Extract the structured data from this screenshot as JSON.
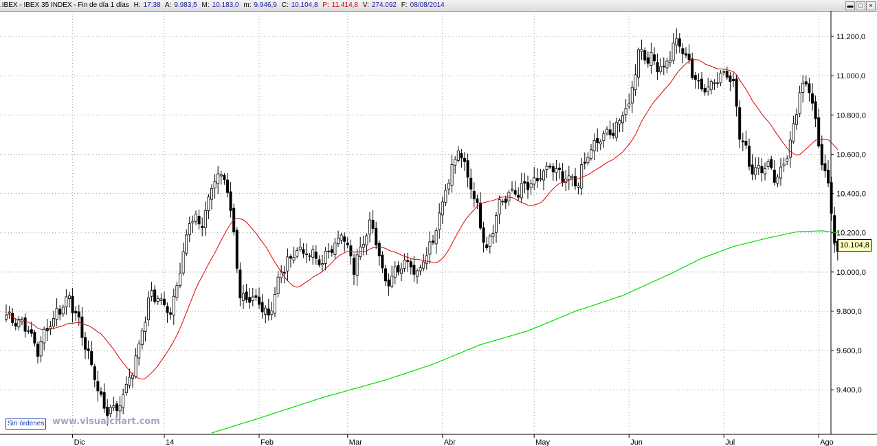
{
  "titlebar": {
    "symbol": ".IBEX - IBEX 35 INDEX - Fin de día 1 días",
    "h_label": "H:",
    "h_value": "17:38",
    "a_label": "A:",
    "a_value": "9.983,5",
    "m_label": "M:",
    "m_value": "10.183,0",
    "low_label": "m:",
    "low_value": "9.946,9",
    "c_label": "C:",
    "c_value": "10.104,8",
    "p_label": "P:",
    "p_value": "11.414,8",
    "v_label": "V:",
    "v_value": "274.092",
    "f_label": "F:",
    "f_value": "08/08/2014",
    "window_buttons": [
      "▬",
      "□",
      "×"
    ]
  },
  "badge": "Sin órdenes",
  "watermark": "www.visualchart.com",
  "last_price": "10.104,8",
  "colors": {
    "ma_short": "#e00000",
    "ma_long": "#00dd00",
    "grid": "#a0a0a0",
    "candle": "#000000"
  },
  "chart_data": {
    "type": "candlestick",
    "y_ticks": [
      "11.200,0",
      "11.000,0",
      "10.800,0",
      "10.600,0",
      "10.400,0",
      "10.200,0",
      "10.000,0",
      "9.800,0",
      "9.600,0",
      "9.400,0"
    ],
    "y_tick_values": [
      11200,
      11000,
      10800,
      10600,
      10400,
      10200,
      10000,
      9800,
      9600,
      9400
    ],
    "ylim": [
      9180,
      11330
    ],
    "x_labels": [
      "Dic",
      "14",
      "Feb",
      "Mar",
      "Abr",
      "May",
      "Jun",
      "Jul",
      "Ago"
    ],
    "x_label_bar": [
      21,
      50,
      80,
      108,
      138,
      167,
      197,
      227,
      257
    ],
    "num_bars": 264,
    "anchors": [
      [
        0,
        9780
      ],
      [
        6,
        9730
      ],
      [
        10,
        9600
      ],
      [
        13,
        9720
      ],
      [
        20,
        9880
      ],
      [
        25,
        9630
      ],
      [
        31,
        9300
      ],
      [
        35,
        9300
      ],
      [
        40,
        9500
      ],
      [
        46,
        9900
      ],
      [
        52,
        9790
      ],
      [
        58,
        10260
      ],
      [
        62,
        10250
      ],
      [
        66,
        10480
      ],
      [
        69,
        10500
      ],
      [
        72,
        10210
      ],
      [
        74,
        9850
      ],
      [
        80,
        9850
      ],
      [
        83,
        9780
      ],
      [
        87,
        10000
      ],
      [
        92,
        10120
      ],
      [
        100,
        10050
      ],
      [
        106,
        10200
      ],
      [
        110,
        10020
      ],
      [
        115,
        10270
      ],
      [
        120,
        9950
      ],
      [
        126,
        10060
      ],
      [
        130,
        10000
      ],
      [
        135,
        10170
      ],
      [
        139,
        10420
      ],
      [
        143,
        10620
      ],
      [
        147,
        10450
      ],
      [
        152,
        10120
      ],
      [
        156,
        10350
      ],
      [
        160,
        10400
      ],
      [
        164,
        10430
      ],
      [
        168,
        10460
      ],
      [
        172,
        10540
      ],
      [
        176,
        10470
      ],
      [
        181,
        10460
      ],
      [
        184,
        10600
      ],
      [
        188,
        10680
      ],
      [
        192,
        10720
      ],
      [
        197,
        10850
      ],
      [
        200,
        11130
      ],
      [
        204,
        11080
      ],
      [
        208,
        11040
      ],
      [
        212,
        11180
      ],
      [
        216,
        11060
      ],
      [
        220,
        10920
      ],
      [
        224,
        10980
      ],
      [
        228,
        11020
      ],
      [
        230,
        10970
      ],
      [
        232,
        10700
      ],
      [
        236,
        10520
      ],
      [
        240,
        10550
      ],
      [
        244,
        10480
      ],
      [
        248,
        10650
      ],
      [
        251,
        10920
      ],
      [
        254,
        10940
      ],
      [
        257,
        10650
      ],
      [
        260,
        10450
      ],
      [
        262,
        10160
      ],
      [
        263,
        10105
      ]
    ],
    "series": [
      {
        "name": "MA20",
        "color": "#e00000"
      },
      {
        "name": "MA200",
        "color": "#00dd00"
      }
    ],
    "ma200": [
      [
        65,
        9180
      ],
      [
        80,
        9255
      ],
      [
        100,
        9360
      ],
      [
        120,
        9450
      ],
      [
        135,
        9530
      ],
      [
        150,
        9630
      ],
      [
        165,
        9700
      ],
      [
        180,
        9800
      ],
      [
        195,
        9880
      ],
      [
        210,
        9990
      ],
      [
        220,
        10070
      ],
      [
        230,
        10130
      ],
      [
        240,
        10170
      ],
      [
        250,
        10205
      ],
      [
        258,
        10210
      ],
      [
        263,
        10200
      ]
    ]
  }
}
